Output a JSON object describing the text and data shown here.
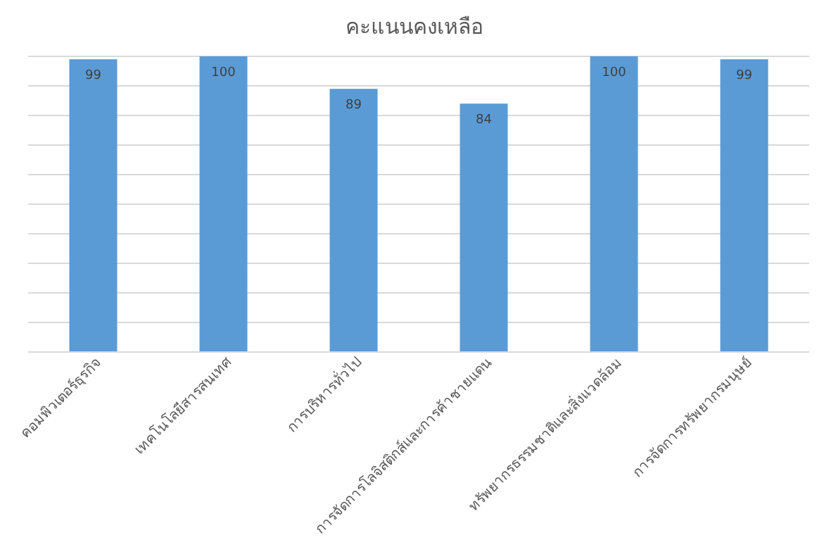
{
  "chart_data": {
    "type": "bar",
    "title": "คะแนนคงเหลือ",
    "categories": [
      "คอมพิวเตอร์ธุรกิจ",
      "เทคโนโลยีสารสนเทศ",
      "การบริหารทั่วไป",
      "การจัดการโลจิสติกส์และการค้าชายแดน",
      "ทรัพยากรธรรมชาติและสิ่งแวดล้อม",
      "การจัดการทรัพยากรมนุษย์"
    ],
    "values": [
      99,
      100,
      89,
      84,
      100,
      99
    ],
    "color": "#5b9bd5",
    "ylim": [
      0,
      100
    ],
    "yticks": [
      {
        "value": 0,
        "label": null
      },
      {
        "value": 10,
        "label": null
      },
      {
        "value": 20,
        "label": null
      },
      {
        "value": 30,
        "label": null
      },
      {
        "value": 40,
        "label": null
      },
      {
        "value": 50,
        "label": null
      },
      {
        "value": 60,
        "label": null
      },
      {
        "value": 70,
        "label": null
      },
      {
        "value": 80,
        "label": null
      },
      {
        "value": 90,
        "label": null
      },
      {
        "value": 100,
        "label": null
      }
    ],
    "tick_labels": "x",
    "grid": "y",
    "data_labels": true
  }
}
